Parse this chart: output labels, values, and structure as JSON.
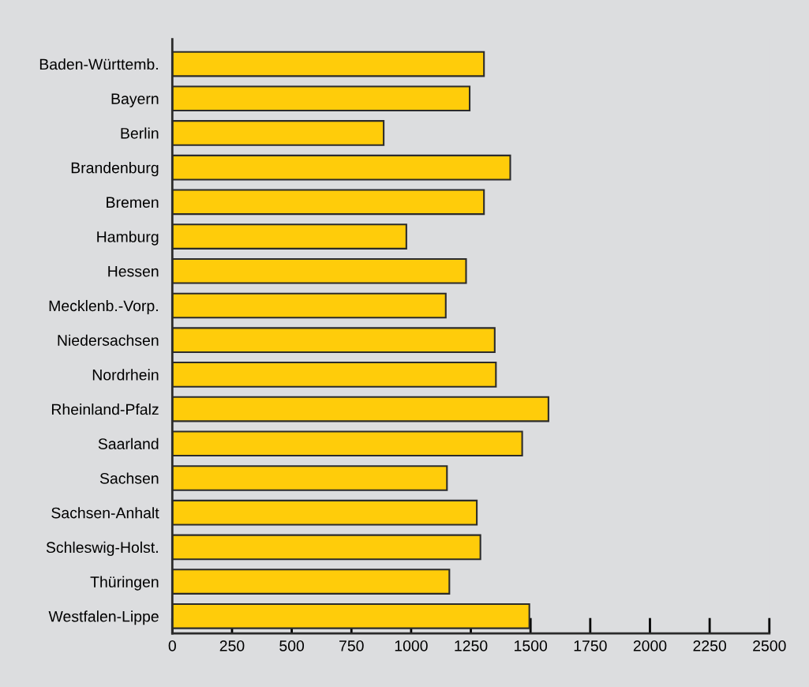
{
  "chart_data": {
    "type": "bar",
    "orientation": "horizontal",
    "categories": [
      "Baden-Württemb.",
      "Bayern",
      "Berlin",
      "Brandenburg",
      "Bremen",
      "Hamburg",
      "Hessen",
      "Mecklenb.-Vorp.",
      "Niedersachsen",
      "Nordrhein",
      "Rheinland-Pfalz",
      "Saarland",
      "Sachsen",
      "Sachsen-Anhalt",
      "Schleswig-Holst.",
      "Thüringen",
      "Westfalen-Lippe"
    ],
    "values": [
      1305,
      1245,
      885,
      1415,
      1305,
      980,
      1230,
      1145,
      1350,
      1355,
      1575,
      1465,
      1150,
      1275,
      1290,
      1160,
      1495
    ],
    "color": "#ffcc0a",
    "xlim": [
      0,
      2500
    ],
    "xticks": [
      0,
      250,
      500,
      750,
      1000,
      1250,
      1500,
      1750,
      2000,
      2250,
      2500
    ],
    "grid": false
  }
}
